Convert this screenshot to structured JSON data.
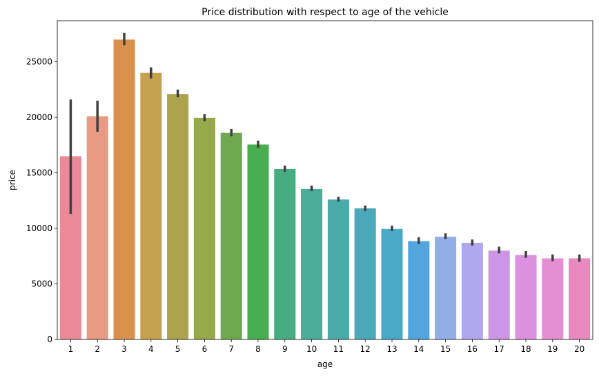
{
  "chart_data": {
    "type": "bar",
    "title": "Price distribution with respect to age of the vehicle",
    "xlabel": "age",
    "ylabel": "price",
    "ylim": [
      0,
      28700
    ],
    "yticks": [
      0,
      5000,
      10000,
      15000,
      20000,
      25000
    ],
    "ytick_labels": [
      "0",
      "5000",
      "10000",
      "15000",
      "20000",
      "25000"
    ],
    "categories": [
      "1",
      "2",
      "3",
      "4",
      "5",
      "6",
      "7",
      "8",
      "9",
      "10",
      "11",
      "12",
      "13",
      "14",
      "15",
      "16",
      "17",
      "18",
      "19",
      "20"
    ],
    "values": [
      16500,
      20100,
      27000,
      24000,
      22100,
      19950,
      18600,
      17550,
      15350,
      13550,
      12600,
      11800,
      9950,
      8850,
      9250,
      8700,
      8000,
      7600,
      7300,
      7300
    ],
    "error_low": [
      11300,
      18700,
      26500,
      23500,
      21800,
      19650,
      18300,
      17250,
      15100,
      13350,
      12400,
      11550,
      9750,
      8600,
      9050,
      8450,
      7750,
      7350,
      7050,
      7000
    ],
    "error_high": [
      21600,
      21500,
      27600,
      24500,
      22500,
      20300,
      18950,
      17900,
      15650,
      13850,
      12850,
      12050,
      10250,
      9200,
      9550,
      9000,
      8350,
      7950,
      7650,
      7650
    ],
    "colors": [
      "#ea8a98",
      "#e99a82",
      "#d9914d",
      "#c6a14e",
      "#aca34c",
      "#98a94c",
      "#6ea94f",
      "#47ad4e",
      "#47ad80",
      "#4aad98",
      "#4aaba9",
      "#4ba9b9",
      "#4aa9c6",
      "#52a5dd",
      "#91aee6",
      "#b0a7ee",
      "#cc95e6",
      "#dd90df",
      "#e68ed3",
      "#ea88c0"
    ],
    "error_bar_color": "#3f3f3f",
    "grid": false,
    "legend": "none"
  }
}
